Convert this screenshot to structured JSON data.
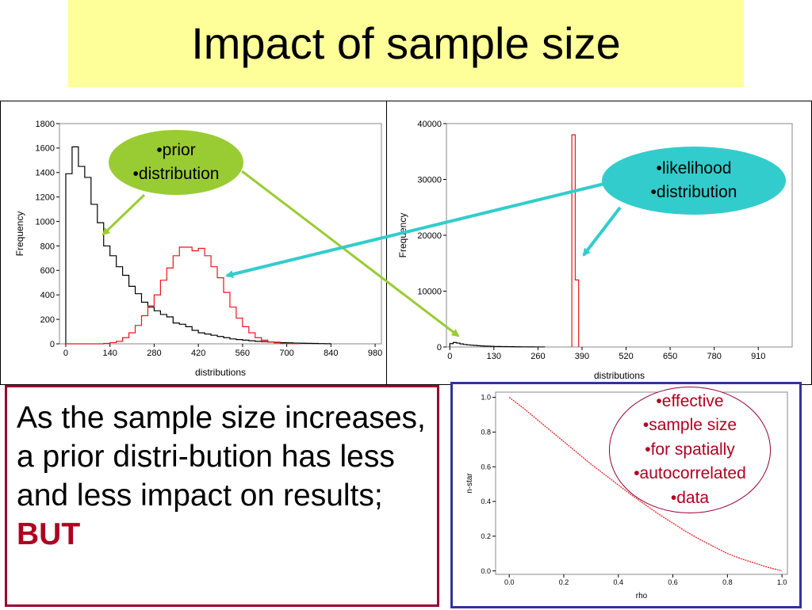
{
  "slide": {
    "title": "Impact of sample size",
    "body_text": "As the sample size increases, a prior distri-bution has less and less impact on results;",
    "body_emphasis": "BUT"
  },
  "callouts": {
    "prior": [
      "•prior",
      "•distribution"
    ],
    "likelihood": [
      "•likelihood",
      "•distribution"
    ],
    "effective": [
      "•effective",
      "•sample size",
      "•for spatially",
      "•autocorrelated",
      "•data"
    ]
  },
  "colors": {
    "title_bg": "#ffff99",
    "prior_callout": "#99cc33",
    "likelihood_callout": "#33cccc",
    "text_box_border": "#990033",
    "chart_box_border": "#333399",
    "emphasis": "#b00020",
    "series_red": "#e8151c",
    "series_black": "#000000"
  },
  "chart_data": [
    {
      "type": "histogram",
      "xlabel": "distributions",
      "ylabel": "Frequency",
      "xlim": [
        -20,
        1000
      ],
      "ylim": [
        0,
        1800
      ],
      "xticks": [
        0,
        140,
        280,
        420,
        560,
        700,
        840,
        980
      ],
      "yticks": [
        0,
        200,
        400,
        600,
        800,
        1000,
        1200,
        1400,
        1600,
        1800
      ],
      "bin_width": 20,
      "series": [
        {
          "color": "#000000",
          "bins_start": 0,
          "values": [
            1390,
            1610,
            1450,
            1360,
            1140,
            990,
            800,
            720,
            630,
            560,
            470,
            410,
            340,
            300,
            270,
            240,
            220,
            170,
            160,
            140,
            110,
            90,
            80,
            70,
            60,
            50,
            40,
            35,
            30,
            25,
            20,
            18,
            15,
            12,
            10,
            8,
            6,
            5,
            4,
            3,
            2,
            1
          ]
        },
        {
          "color": "#e8151c",
          "bins_start": 0,
          "values": [
            0,
            0,
            0,
            0,
            0,
            0,
            3,
            10,
            20,
            50,
            90,
            150,
            230,
            310,
            400,
            520,
            620,
            720,
            790,
            790,
            760,
            780,
            720,
            630,
            540,
            420,
            300,
            210,
            140,
            90,
            50,
            30,
            15,
            8,
            3,
            2,
            1
          ]
        }
      ]
    },
    {
      "type": "histogram",
      "xlabel": "distributions",
      "ylabel": "Frequency",
      "xlim": [
        -10,
        1010
      ],
      "ylim": [
        0,
        40000
      ],
      "xticks": [
        0,
        130,
        260,
        390,
        520,
        650,
        780,
        910
      ],
      "yticks": [
        0,
        10000,
        20000,
        30000,
        40000
      ],
      "series": [
        {
          "color": "#000000",
          "bins_start": 0,
          "bin_width": 10,
          "values": [
            600,
            800,
            700,
            550,
            450,
            380,
            330,
            280,
            230,
            190,
            160,
            140,
            120,
            100,
            90,
            80,
            70,
            60,
            50,
            40,
            35,
            30,
            25,
            20,
            15,
            12,
            10,
            6
          ]
        },
        {
          "color": "#e8151c",
          "bins_start": 360,
          "bin_width": 10,
          "values": [
            38000,
            12000
          ]
        }
      ]
    },
    {
      "type": "line",
      "xlabel": "rho",
      "ylabel": "n-star",
      "xlim": [
        -0.05,
        1.02
      ],
      "ylim": [
        -0.02,
        1.03
      ],
      "xticks": [
        "0.0",
        "0.2",
        "0.4",
        "0.6",
        "0.8",
        "1.0"
      ],
      "yticks": [
        "0.0",
        "0.2",
        "0.4",
        "0.6",
        "0.8",
        "1.0"
      ],
      "series": [
        {
          "color": "#e8151c",
          "x": [
            0.0,
            0.05,
            0.1,
            0.15,
            0.2,
            0.25,
            0.3,
            0.35,
            0.4,
            0.45,
            0.5,
            0.55,
            0.6,
            0.65,
            0.7,
            0.75,
            0.8,
            0.85,
            0.9,
            0.95,
            1.0
          ],
          "y": [
            1.0,
            0.94,
            0.875,
            0.81,
            0.745,
            0.68,
            0.615,
            0.555,
            0.495,
            0.435,
            0.38,
            0.325,
            0.275,
            0.225,
            0.18,
            0.14,
            0.1,
            0.07,
            0.045,
            0.02,
            0.0
          ]
        }
      ]
    }
  ]
}
